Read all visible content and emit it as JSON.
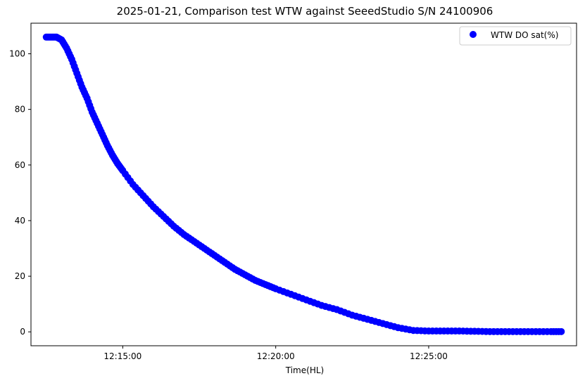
{
  "chart_data": {
    "type": "scatter",
    "title": "2025-01-21, Comparison test WTW against SeeedStudio S/N 24100906",
    "xlabel": "Time(HL)",
    "ylabel": "",
    "xlim": [
      "12:12:00",
      "12:29:50"
    ],
    "ylim": [
      -5,
      111
    ],
    "xticks": [
      "12:15:00",
      "12:20:00",
      "12:25:00"
    ],
    "yticks": [
      0,
      20,
      40,
      60,
      80,
      100
    ],
    "grid": false,
    "legend_position": "top-right",
    "series": [
      {
        "name": "WTW DO sat(%)",
        "color": "#0000ff",
        "x": [
          "12:12:30",
          "12:12:40",
          "12:12:50",
          "12:13:00",
          "12:13:10",
          "12:13:20",
          "12:13:30",
          "12:13:40",
          "12:13:50",
          "12:14:00",
          "12:14:10",
          "12:14:20",
          "12:14:30",
          "12:14:40",
          "12:14:50",
          "12:15:00",
          "12:15:20",
          "12:15:40",
          "12:16:00",
          "12:16:20",
          "12:16:40",
          "12:17:00",
          "12:17:20",
          "12:17:40",
          "12:18:00",
          "12:18:20",
          "12:18:40",
          "12:19:00",
          "12:19:20",
          "12:19:40",
          "12:20:00",
          "12:20:30",
          "12:21:00",
          "12:21:30",
          "12:22:00",
          "12:22:30",
          "12:23:00",
          "12:23:30",
          "12:24:00",
          "12:24:30",
          "12:25:00",
          "12:25:30",
          "12:26:00",
          "12:26:30",
          "12:27:00",
          "12:27:30",
          "12:28:00",
          "12:28:30",
          "12:29:00",
          "12:29:20"
        ],
        "y": [
          106,
          106,
          106,
          105,
          102,
          98,
          93,
          88,
          84,
          79,
          75,
          71,
          67,
          63.5,
          60.5,
          58,
          53,
          49,
          45,
          41.5,
          38,
          35,
          32.5,
          30,
          27.5,
          25,
          22.5,
          20.5,
          18.5,
          17,
          15.5,
          13.5,
          11.5,
          9.5,
          8,
          6,
          4.5,
          3,
          1.5,
          0.5,
          0.3,
          0.3,
          0.3,
          0.2,
          0.1,
          0.1,
          0.1,
          0.1,
          0.1,
          0.1
        ]
      }
    ]
  }
}
